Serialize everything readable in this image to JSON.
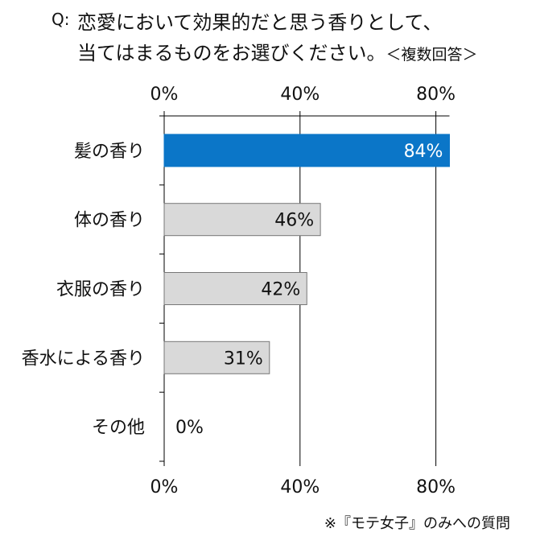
{
  "title": {
    "prefix": "Q:",
    "line1": "恋愛において効果的だと思う香りとして、",
    "line2": "当てはまるものをお選びください。",
    "note": "＜複数回答＞"
  },
  "footnote": "※『モテ女子』のみへの質問",
  "colors": {
    "highlight": "#0b76c8",
    "default": "#d9d9d9",
    "bar_stroke": "#777777"
  },
  "chart_data": {
    "type": "bar",
    "orientation": "horizontal",
    "categories": [
      "髪の香り",
      "体の香り",
      "衣服の香り",
      "香水による香り",
      "その他"
    ],
    "values": [
      84,
      46,
      42,
      31,
      0
    ],
    "value_labels": [
      "84%",
      "46%",
      "42%",
      "31%",
      "0%"
    ],
    "highlight_index": 0,
    "xlim": [
      0,
      84
    ],
    "ticks": [
      0,
      40,
      80
    ],
    "tick_labels": [
      "0%",
      "40%",
      "80%"
    ],
    "grid": true,
    "legend": "none"
  }
}
